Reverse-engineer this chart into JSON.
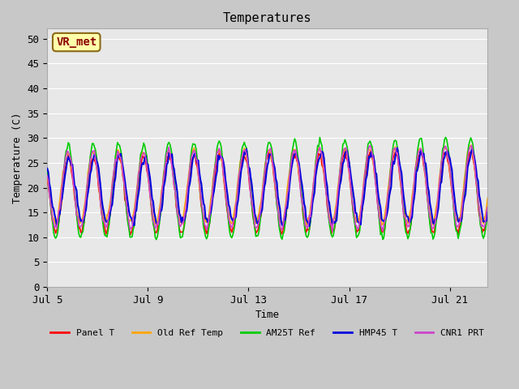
{
  "title": "Temperatures",
  "xlabel": "Time",
  "ylabel": "Temperature (C)",
  "ylim": [
    0,
    52
  ],
  "yticks": [
    0,
    5,
    10,
    15,
    20,
    25,
    30,
    35,
    40,
    45,
    50
  ],
  "xlim_days": [
    0,
    17.5
  ],
  "xtick_positions": [
    0,
    4,
    8,
    12,
    16
  ],
  "xtick_labels": [
    "Jul 5",
    "Jul 9",
    "Jul 13",
    "Jul 17",
    "Jul 21"
  ],
  "annotation_text": "VR_met",
  "annotation_color": "#8B0000",
  "annotation_bg": "#FFFFAA",
  "annotation_border": "#8B6914",
  "series": [
    {
      "label": "Panel T",
      "color": "#FF0000",
      "lw": 1.2
    },
    {
      "label": "Old Ref Temp",
      "color": "#FFA500",
      "lw": 1.2
    },
    {
      "label": "AM25T Ref",
      "color": "#00CC00",
      "lw": 1.2
    },
    {
      "label": "HMP45 T",
      "color": "#0000DD",
      "lw": 1.5
    },
    {
      "label": "CNR1 PRT",
      "color": "#CC44CC",
      "lw": 1.2
    }
  ],
  "bg_plot": "#E8E8E8",
  "grid_color": "#FFFFFF",
  "grid_lw": 0.8,
  "n_points": 421
}
